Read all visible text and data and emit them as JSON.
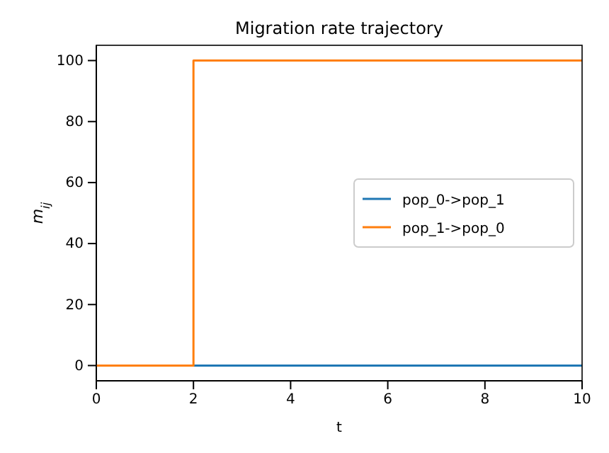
{
  "chart_data": {
    "type": "step",
    "title": "Migration rate trajectory",
    "xlabel": "t",
    "ylabel": "m$_{ij}$",
    "xlim": [
      0,
      10
    ],
    "ylim": [
      -5,
      105
    ],
    "xticks": [
      0,
      2,
      4,
      6,
      8,
      10
    ],
    "yticks": [
      0,
      20,
      40,
      60,
      80,
      100
    ],
    "series": [
      {
        "name": "pop_0->pop_1",
        "color": "#1f77b4",
        "x": [
          0,
          2,
          10
        ],
        "values": [
          0,
          0,
          0
        ]
      },
      {
        "name": "pop_1->pop_0",
        "color": "#ff7f0e",
        "x": [
          0,
          2,
          10
        ],
        "values": [
          0,
          100,
          100
        ]
      }
    ],
    "legend": "right",
    "grid": false
  }
}
